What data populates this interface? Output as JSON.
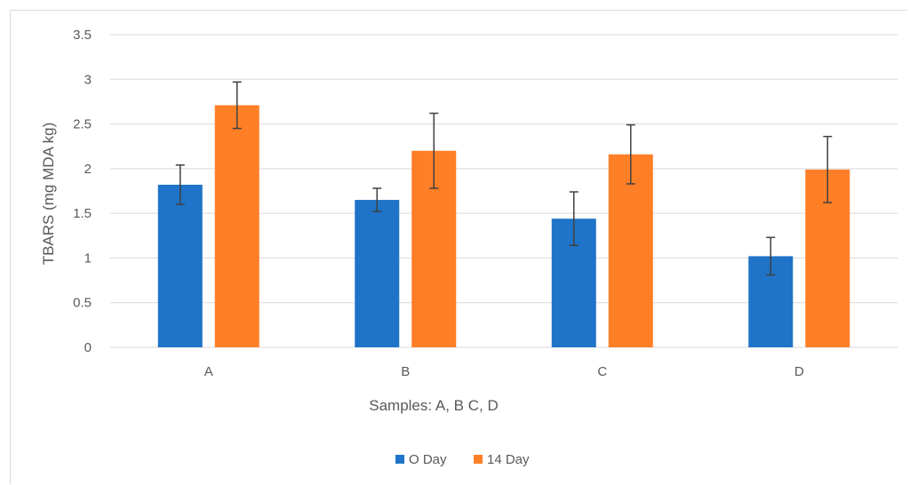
{
  "chart_data": {
    "type": "bar",
    "categories": [
      "A",
      "B",
      "C",
      "D"
    ],
    "series": [
      {
        "name": "O Day",
        "values": [
          1.82,
          1.65,
          1.44,
          1.02
        ],
        "errors": [
          0.22,
          0.13,
          0.3,
          0.21
        ],
        "color": "#1f73c8"
      },
      {
        "name": "14 Day",
        "values": [
          2.71,
          2.2,
          2.16,
          1.99
        ],
        "errors": [
          0.26,
          0.42,
          0.33,
          0.37
        ],
        "color": "#ff7f27"
      }
    ],
    "title": "",
    "xlabel": "Samples: A, B C, D",
    "ylabel": "TBARS (mg MDA kg)",
    "ylim": [
      0,
      3.5
    ],
    "yticks": [
      "0",
      "0.5",
      "1",
      "1.5",
      "2",
      "2.5",
      "3",
      "3.5"
    ],
    "grid": true,
    "legend_position": "bottom",
    "gridline_color": "#d9d9d9",
    "errorbar_color": "#404040"
  }
}
